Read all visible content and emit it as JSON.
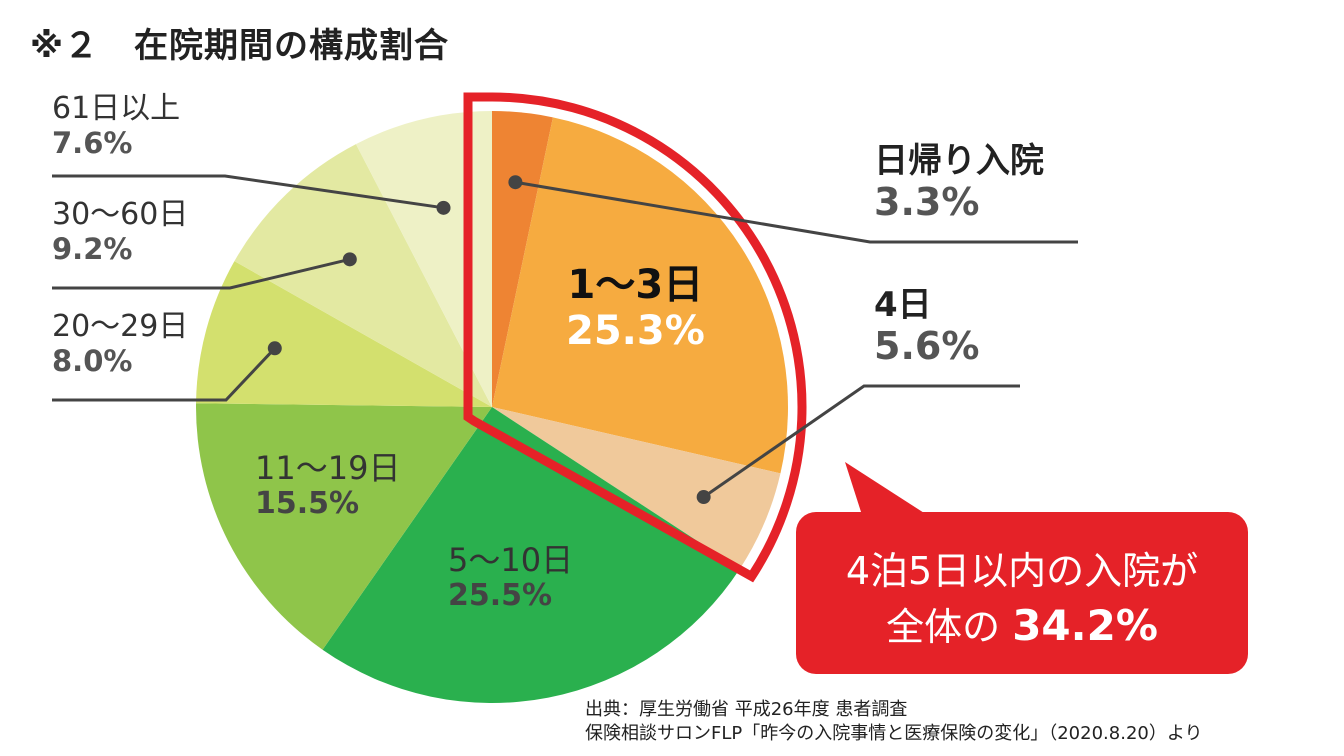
{
  "title": "※２　在院期間の構成割合",
  "chart_data": {
    "type": "pie",
    "title": "在院期間の構成割合",
    "slices": [
      {
        "label": "日帰り入院",
        "value": 3.3,
        "color": "#ee8433"
      },
      {
        "label": "1〜3日",
        "value": 25.3,
        "color": "#f6ab40"
      },
      {
        "label": "4日",
        "value": 5.6,
        "color": "#f0c99b"
      },
      {
        "label": "5〜10日",
        "value": 25.5,
        "color": "#2ab04e"
      },
      {
        "label": "11〜19日",
        "value": 15.5,
        "color": "#8fc54a"
      },
      {
        "label": "20〜29日",
        "value": 8.0,
        "color": "#d3e06e"
      },
      {
        "label": "30〜60日",
        "value": 9.2,
        "color": "#e3e9a2"
      },
      {
        "label": "61日以上",
        "value": 7.6,
        "color": "#eef1c6"
      }
    ],
    "value_labels": [
      "3.3%",
      "25.3%",
      "5.6%",
      "25.5%",
      "15.5%",
      "8.0%",
      "9.2%",
      "7.6%"
    ],
    "highlight": {
      "slices": [
        "日帰り入院",
        "1〜3日",
        "4日"
      ],
      "total": "34.2%",
      "color": "#e52228"
    }
  },
  "labels": {
    "day_trip": {
      "name": "日帰り入院",
      "pct": "3.3%"
    },
    "d1_3": {
      "name": "1〜3日",
      "pct": "25.3%"
    },
    "d4": {
      "name": "4日",
      "pct": "5.6%"
    },
    "d5_10": {
      "name": "5〜10日",
      "pct": "25.5%"
    },
    "d11_19": {
      "name": "11〜19日",
      "pct": "15.5%"
    },
    "d20_29": {
      "name": "20〜29日",
      "pct": "8.0%"
    },
    "d30_60": {
      "name": "30〜60日",
      "pct": "9.2%"
    },
    "d61": {
      "name": "61日以上",
      "pct": "7.6%"
    }
  },
  "callout": {
    "line1": "4泊5日以内の入院が",
    "line2_prefix": "全体の",
    "line2_value": "34.2%"
  },
  "source": {
    "line1": "出典：厚生労働省 平成26年度 患者調査",
    "line2": "保険相談サロンFLP「昨今の入院事情と医療保険の変化」（2020.8.20）より"
  }
}
